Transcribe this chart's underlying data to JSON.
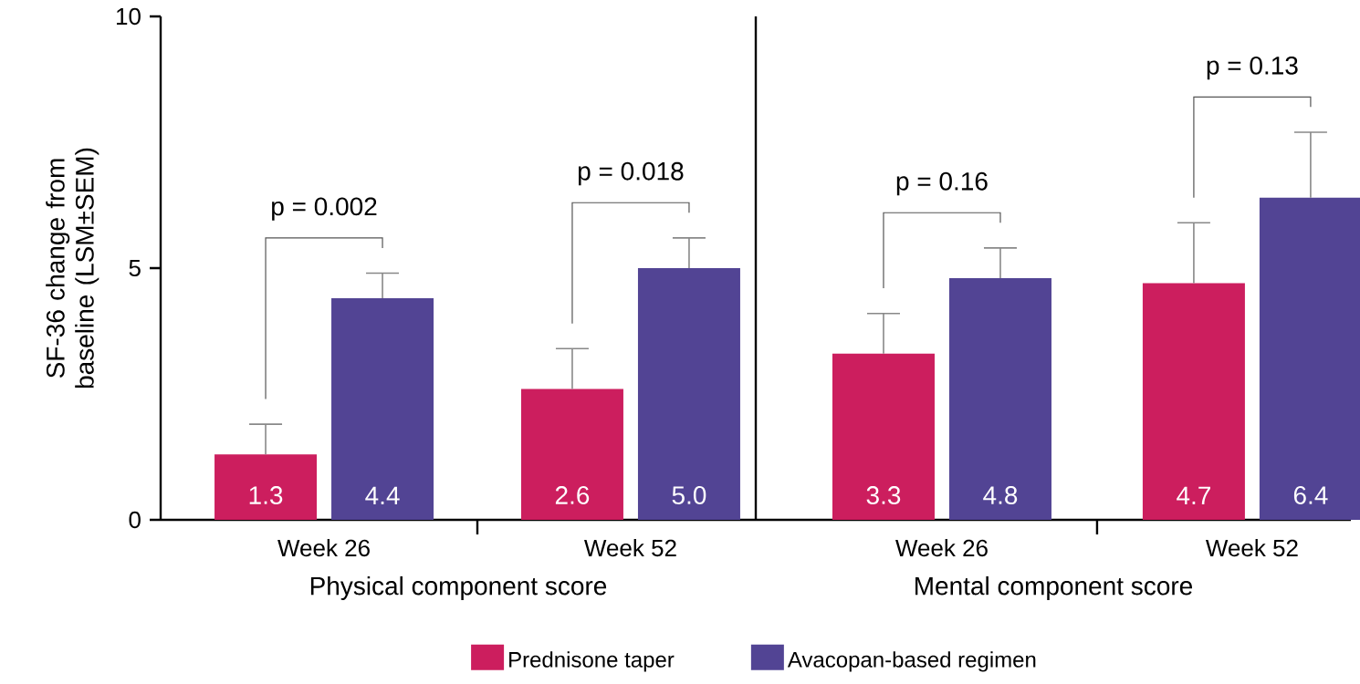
{
  "chart_data": [
    {
      "type": "bar",
      "xlabel": "Physical component score",
      "ylabel": "SF-36 change from baseline (LSM±SEM)",
      "categories": [
        "Week 26",
        "Week 52"
      ],
      "series": [
        {
          "name": "Prednisone taper",
          "color": "#cc1e5e",
          "values": [
            1.3,
            2.6
          ],
          "value_labels": [
            "1.3",
            "2.6"
          ],
          "errors": [
            [
              1.3,
              1.9
            ],
            [
              2.6,
              3.4
            ]
          ]
        },
        {
          "name": "Avacopan-based regimen",
          "color": "#524494",
          "values": [
            4.4,
            5.0
          ],
          "value_labels": [
            "4.4",
            "5.0"
          ],
          "errors": [
            [
              4.4,
              4.9
            ],
            [
              5.0,
              5.6
            ]
          ]
        }
      ],
      "ylim": [
        0,
        10
      ],
      "yticks": [
        0,
        5,
        10
      ],
      "legend": "bottom",
      "annotations": [
        "p = 0.002",
        "p = 0.018"
      ]
    },
    {
      "type": "bar",
      "xlabel": "Mental component score",
      "categories": [
        "Week 26",
        "Week 52"
      ],
      "series": [
        {
          "color": "#cc1e5e",
          "values": [
            3.3,
            4.7
          ],
          "value_labels": [
            "3.3",
            "4.7"
          ],
          "errors": [
            [
              3.3,
              4.1
            ],
            [
              4.7,
              5.9
            ]
          ]
        },
        {
          "color": "#524494",
          "values": [
            4.8,
            6.4
          ],
          "value_labels": [
            "4.8",
            "6.4"
          ],
          "errors": [
            [
              4.8,
              5.4
            ],
            [
              6.4,
              7.7
            ]
          ]
        }
      ],
      "ylim": [
        0,
        10
      ],
      "tick_labels": "x",
      "annotations": [
        "p = 0.16",
        "p = 0.13"
      ]
    }
  ]
}
